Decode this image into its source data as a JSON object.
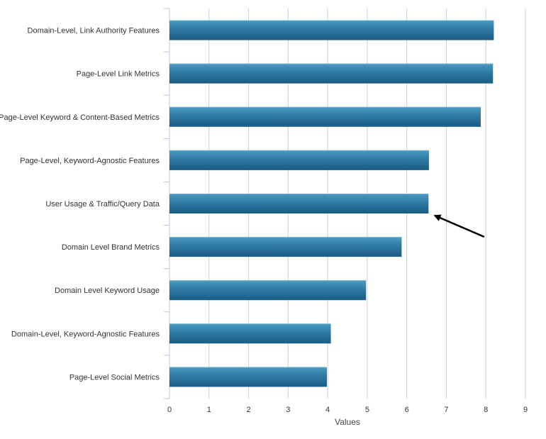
{
  "chart_data": {
    "type": "bar",
    "orientation": "horizontal",
    "categories": [
      "Domain-Level, Link Authority Features",
      "Page-Level Link Metrics",
      "Page-Level Keyword & Content-Based Metrics",
      "Page-Level, Keyword-Agnostic Features",
      "User Usage & Traffic/Query Data",
      "Domain Level Brand Metrics",
      "Domain Level Keyword Usage",
      "Domain-Level, Keyword-Agnostic Features",
      "Page-Level Social Metrics"
    ],
    "values": [
      8.2,
      8.18,
      7.87,
      6.56,
      6.55,
      5.87,
      4.97,
      4.08,
      3.98
    ],
    "xlabel": "Values",
    "ylabel": "",
    "xlim": [
      0,
      9
    ],
    "xticks": [
      "0",
      "1",
      "2",
      "3",
      "4",
      "5",
      "6",
      "7",
      "8",
      "9"
    ],
    "grid": true,
    "legend": "none",
    "annotation": {
      "type": "arrow",
      "target_category": "User Usage & Traffic/Query Data"
    },
    "colors": {
      "bar_light": "#3f8fb5",
      "bar_dark": "#1e5f86",
      "grid": "#d0d0d0",
      "axis": "#b8c8d8",
      "arrow": "#000000"
    }
  }
}
